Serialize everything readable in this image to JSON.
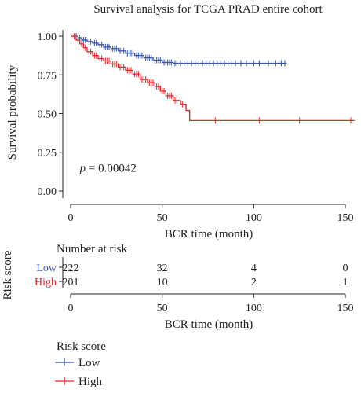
{
  "chart_data": {
    "type": "line",
    "subtype": "kaplan-meier",
    "title": "Survival analysis for TCGA PRAD entire cohort",
    "xlabel": "BCR time (month)",
    "ylabel": "Survival probability",
    "xlim": [
      0,
      155
    ],
    "ylim": [
      0,
      1.0
    ],
    "x_ticks": [
      "0",
      "50",
      "100",
      "150"
    ],
    "y_ticks": [
      "0.00",
      "0.25",
      "0.50",
      "0.75",
      "1.00"
    ],
    "annotation": {
      "prefix": "p",
      "text": " = 0.00042",
      "x": 5,
      "y": 0.15
    },
    "series": [
      {
        "name": "Low",
        "color": "#3a55a4",
        "steps": [
          [
            0,
            1.0
          ],
          [
            4,
            0.99
          ],
          [
            6,
            0.975
          ],
          [
            9,
            0.965
          ],
          [
            12,
            0.955
          ],
          [
            15,
            0.945
          ],
          [
            18,
            0.93
          ],
          [
            22,
            0.92
          ],
          [
            26,
            0.905
          ],
          [
            30,
            0.89
          ],
          [
            35,
            0.875
          ],
          [
            40,
            0.86
          ],
          [
            45,
            0.845
          ],
          [
            50,
            0.83
          ],
          [
            56,
            0.825
          ],
          [
            118,
            0.825
          ]
        ],
        "censor_x": [
          3,
          5,
          7,
          8,
          10,
          11,
          13,
          14,
          16,
          17,
          19,
          20,
          21,
          23,
          24,
          25,
          27,
          28,
          29,
          31,
          32,
          33,
          34,
          36,
          37,
          38,
          39,
          41,
          42,
          43,
          44,
          46,
          47,
          48,
          49,
          51,
          52,
          53,
          54,
          55,
          57,
          58,
          60,
          62,
          64,
          66,
          68,
          70,
          72,
          74,
          76,
          78,
          80,
          82,
          84,
          86,
          88,
          90,
          93,
          96,
          100,
          103,
          108,
          112,
          115,
          117
        ]
      },
      {
        "name": "High",
        "color": "#e0242b",
        "steps": [
          [
            0,
            1.0
          ],
          [
            3,
            0.975
          ],
          [
            5,
            0.95
          ],
          [
            7,
            0.925
          ],
          [
            9,
            0.9
          ],
          [
            12,
            0.875
          ],
          [
            15,
            0.855
          ],
          [
            18,
            0.84
          ],
          [
            22,
            0.82
          ],
          [
            26,
            0.8
          ],
          [
            30,
            0.78
          ],
          [
            34,
            0.755
          ],
          [
            38,
            0.72
          ],
          [
            42,
            0.7
          ],
          [
            46,
            0.675
          ],
          [
            49,
            0.645
          ],
          [
            52,
            0.615
          ],
          [
            56,
            0.585
          ],
          [
            60,
            0.56
          ],
          [
            63,
            0.52
          ],
          [
            65,
            0.455
          ],
          [
            155,
            0.455
          ]
        ],
        "censor_x": [
          2,
          4,
          6,
          8,
          10,
          11,
          13,
          14,
          16,
          17,
          19,
          20,
          21,
          23,
          24,
          25,
          27,
          28,
          29,
          31,
          32,
          33,
          35,
          36,
          37,
          39,
          40,
          41,
          43,
          44,
          45,
          47,
          48,
          50,
          51,
          53,
          54,
          55,
          57,
          58,
          61,
          79,
          103,
          125,
          153
        ]
      }
    ],
    "risk_table": {
      "title": "Number at risk",
      "group_label": "Risk score",
      "xlabel": "BCR time (month)",
      "time_points": [
        0,
        50,
        100,
        150
      ],
      "x_ticks": [
        "0",
        "50",
        "100",
        "150"
      ],
      "rows": [
        {
          "label": "Low",
          "color": "#3a55a4",
          "counts": [
            "222",
            "32",
            "4",
            "0"
          ]
        },
        {
          "label": "High",
          "color": "#e0242b",
          "counts": [
            "201",
            "10",
            "2",
            "1"
          ]
        }
      ]
    },
    "legend": {
      "title": "Risk score",
      "position": "bottom-left",
      "items": [
        {
          "label": "Low",
          "color": "#3a55a4"
        },
        {
          "label": "High",
          "color": "#e0242b"
        }
      ]
    }
  }
}
